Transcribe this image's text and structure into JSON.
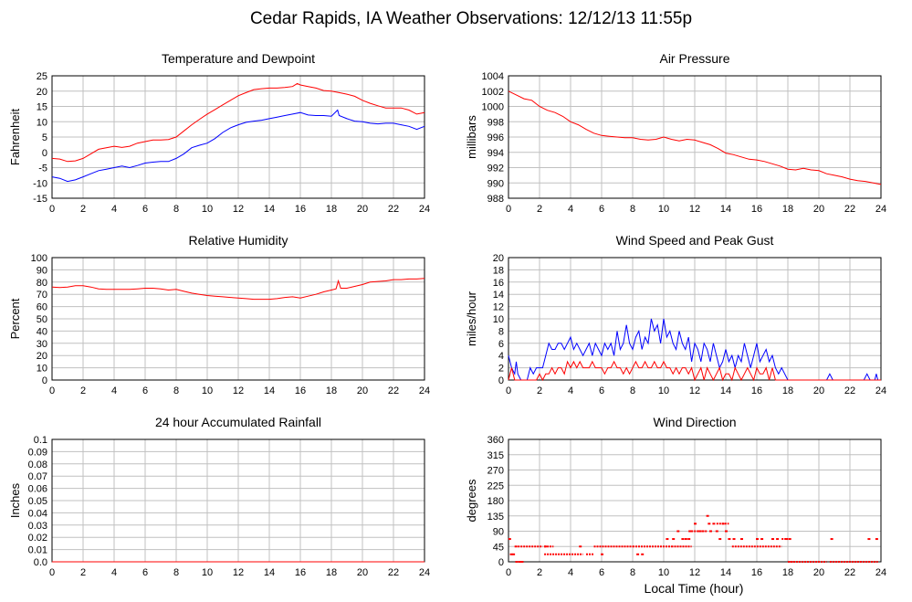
{
  "page": {
    "title": "Cedar Rapids, IA Weather Observations: 12/12/13 11:55p",
    "xlabel": "Local Time (hour)"
  },
  "colors": {
    "primary": "#ff0000",
    "secondary": "#0000ff",
    "grid": "#c0c0c0"
  },
  "chart_data": [
    {
      "id": "temp",
      "type": "line",
      "title": "Temperature and Dewpoint",
      "ylabel": "Fahrenheit",
      "xlim": [
        0,
        24
      ],
      "ylim": [
        -15,
        25
      ],
      "xticks": [
        0,
        2,
        4,
        6,
        8,
        10,
        12,
        14,
        16,
        18,
        20,
        22,
        24
      ],
      "yticks": [
        -15,
        -10,
        -5,
        0,
        5,
        10,
        15,
        20,
        25
      ],
      "grid": true,
      "series": [
        {
          "color": "#ff0000",
          "x": [
            0,
            0.5,
            1,
            1.5,
            2,
            2.5,
            3,
            3.5,
            4,
            4.5,
            5,
            5.5,
            6,
            6.5,
            7,
            7.5,
            8,
            8.5,
            9,
            9.5,
            10,
            10.5,
            11,
            11.5,
            12,
            12.5,
            13,
            13.5,
            14,
            14.5,
            15,
            15.5,
            15.8,
            16,
            16.5,
            17,
            17.5,
            18,
            18.5,
            19,
            19.5,
            20,
            20.5,
            21,
            21.5,
            22,
            22.5,
            23,
            23.5,
            24
          ],
          "y": [
            -2,
            -2.2,
            -3,
            -2.8,
            -2,
            -0.5,
            1,
            1.5,
            2,
            1.6,
            2,
            3,
            3.5,
            4,
            4,
            4.2,
            5,
            7,
            9,
            10.8,
            12.5,
            14,
            15.5,
            17,
            18.5,
            19.5,
            20.5,
            20.8,
            21,
            21,
            21.2,
            21.5,
            22.5,
            22,
            21.5,
            21,
            20.2,
            20,
            19.5,
            19,
            18.3,
            17,
            16,
            15.2,
            14.5,
            14.5,
            14.5,
            13.8,
            12.5,
            13
          ]
        },
        {
          "color": "#0000ff",
          "x": [
            0,
            0.5,
            1,
            1.5,
            2,
            2.5,
            3,
            3.5,
            4,
            4.5,
            5,
            5.5,
            6,
            6.5,
            7,
            7.5,
            8,
            8.5,
            9,
            9.5,
            10,
            10.5,
            11,
            11.5,
            12,
            12.5,
            13,
            13.5,
            14,
            14.5,
            15,
            15.5,
            16,
            16.5,
            17,
            17.5,
            18,
            18.4,
            18.5,
            19,
            19.5,
            20,
            20.5,
            21,
            21.5,
            22,
            22.5,
            23,
            23.5,
            24
          ],
          "y": [
            -8,
            -8.5,
            -9.5,
            -9,
            -8,
            -7,
            -6,
            -5.5,
            -5,
            -4.5,
            -5,
            -4.3,
            -3.5,
            -3.2,
            -3,
            -3,
            -2,
            -0.5,
            1.5,
            2.3,
            3,
            4.5,
            6.5,
            8,
            9,
            9.8,
            10.2,
            10.5,
            11,
            11.5,
            12,
            12.5,
            13,
            12.2,
            12,
            12,
            11.8,
            13.8,
            12,
            11,
            10.2,
            10,
            9.5,
            9.3,
            9.5,
            9.5,
            9,
            8.5,
            7.5,
            8.5
          ]
        }
      ]
    },
    {
      "id": "pressure",
      "type": "line",
      "title": "Air Pressure",
      "ylabel": "millibars",
      "xlim": [
        0,
        24
      ],
      "ylim": [
        988,
        1004
      ],
      "xticks": [
        0,
        2,
        4,
        6,
        8,
        10,
        12,
        14,
        16,
        18,
        20,
        22,
        24
      ],
      "yticks": [
        988,
        990,
        992,
        994,
        996,
        998,
        1000,
        1002,
        1004
      ],
      "grid": true,
      "series": [
        {
          "color": "#ff0000",
          "x": [
            0,
            0.5,
            1,
            1.5,
            2,
            2.5,
            3,
            3.5,
            4,
            4.5,
            5,
            5.5,
            6,
            6.5,
            7,
            7.5,
            8,
            8.5,
            9,
            9.5,
            10,
            10.5,
            11,
            11.5,
            12,
            12.5,
            13,
            13.5,
            14,
            14.5,
            15,
            15.5,
            16,
            16.5,
            17,
            17.5,
            18,
            18.5,
            19,
            19.5,
            20,
            20.5,
            21,
            21.5,
            22,
            22.5,
            23,
            23.5,
            24
          ],
          "y": [
            1002,
            1001.5,
            1001,
            1000.8,
            1000,
            999.5,
            999.2,
            998.7,
            998,
            997.6,
            997,
            996.5,
            996.2,
            996.1,
            996,
            995.9,
            995.9,
            995.7,
            995.6,
            995.7,
            996,
            995.7,
            995.5,
            995.7,
            995.6,
            995.3,
            995,
            994.5,
            993.9,
            993.7,
            993.4,
            993.1,
            993,
            992.8,
            992.5,
            992.2,
            991.8,
            991.7,
            991.9,
            991.7,
            991.6,
            991.2,
            991,
            990.8,
            990.5,
            990.3,
            990.2,
            990,
            989.8
          ]
        }
      ]
    },
    {
      "id": "humidity",
      "type": "line",
      "title": "Relative Humidity",
      "ylabel": "Percent",
      "xlim": [
        0,
        24
      ],
      "ylim": [
        0,
        100
      ],
      "xticks": [
        0,
        2,
        4,
        6,
        8,
        10,
        12,
        14,
        16,
        18,
        20,
        22,
        24
      ],
      "yticks": [
        0,
        10,
        20,
        30,
        40,
        50,
        60,
        70,
        80,
        90,
        100
      ],
      "grid": true,
      "series": [
        {
          "color": "#ff0000",
          "x": [
            0,
            0.5,
            1,
            1.5,
            2,
            2.5,
            3,
            3.5,
            4,
            4.5,
            5,
            5.5,
            6,
            6.5,
            7,
            7.5,
            8,
            8.5,
            9,
            9.5,
            10,
            10.5,
            11,
            11.5,
            12,
            12.5,
            13,
            13.5,
            14,
            14.5,
            15,
            15.5,
            16,
            16.5,
            17,
            17.5,
            18,
            18.3,
            18.45,
            18.6,
            19,
            19.5,
            20,
            20.5,
            21,
            21.5,
            22,
            22.5,
            23,
            23.5,
            24
          ],
          "y": [
            76,
            75.5,
            76,
            77,
            77,
            76,
            74.5,
            74,
            74,
            74,
            74,
            74.5,
            75,
            75,
            74.5,
            73.5,
            74,
            72.5,
            71,
            70,
            69,
            68.5,
            68,
            67.5,
            67,
            66.5,
            66,
            66,
            66,
            66.5,
            67.5,
            68,
            67,
            68.5,
            70,
            72,
            73.5,
            74.5,
            81,
            75,
            75,
            76.5,
            78,
            80,
            80.5,
            81,
            82,
            82,
            82.5,
            82.5,
            83
          ]
        }
      ]
    },
    {
      "id": "wind",
      "type": "line",
      "title": "Wind Speed and Peak Gust",
      "ylabel": "miles/hour",
      "xlim": [
        0,
        24
      ],
      "ylim": [
        0,
        20
      ],
      "xticks": [
        0,
        2,
        4,
        6,
        8,
        10,
        12,
        14,
        16,
        18,
        20,
        22,
        24
      ],
      "yticks": [
        0,
        2,
        4,
        6,
        8,
        10,
        12,
        14,
        16,
        18,
        20
      ],
      "grid": true,
      "series": [
        {
          "color": "#0000ff",
          "x": [
            0,
            0.2,
            0.4,
            0.5,
            0.6,
            0.8,
            1,
            1.2,
            1.4,
            1.6,
            1.8,
            2,
            2.2,
            2.4,
            2.6,
            2.8,
            3,
            3.2,
            3.4,
            3.6,
            3.8,
            4,
            4.2,
            4.4,
            4.6,
            4.8,
            5,
            5.2,
            5.4,
            5.6,
            5.8,
            6,
            6.2,
            6.4,
            6.6,
            6.8,
            7,
            7.2,
            7.4,
            7.6,
            7.8,
            8,
            8.2,
            8.4,
            8.6,
            8.8,
            9,
            9.2,
            9.4,
            9.6,
            9.8,
            10,
            10.2,
            10.4,
            10.6,
            10.8,
            11,
            11.2,
            11.4,
            11.6,
            11.8,
            12,
            12.2,
            12.4,
            12.6,
            12.8,
            13,
            13.2,
            13.4,
            13.6,
            13.8,
            14,
            14.2,
            14.4,
            14.6,
            14.8,
            15,
            15.2,
            15.4,
            15.6,
            15.8,
            16,
            16.2,
            16.4,
            16.6,
            16.8,
            17,
            17.2,
            17.4,
            17.6,
            17.8,
            18,
            18.5,
            19,
            20.5,
            20.7,
            20.9,
            22.9,
            23.1,
            23.3,
            23.6,
            23.7,
            23.8,
            24
          ],
          "y": [
            4,
            2,
            1,
            3,
            1,
            0,
            0,
            0,
            2,
            1,
            2,
            2,
            2,
            4,
            6,
            5,
            5,
            6,
            6,
            5,
            6,
            7,
            5,
            6,
            5,
            4,
            5,
            6,
            4,
            6,
            5,
            4,
            6,
            5,
            6,
            4,
            8,
            5,
            6,
            9,
            6,
            5,
            7,
            8,
            5,
            7,
            6,
            10,
            8,
            9,
            6,
            10,
            7,
            8,
            6,
            5,
            8,
            6,
            5,
            7,
            3,
            6,
            5,
            3,
            6,
            5,
            3,
            6,
            4,
            2,
            3,
            5,
            3,
            4,
            2,
            4,
            3,
            6,
            4,
            2,
            4,
            6,
            3,
            4,
            5,
            3,
            4,
            2,
            1,
            2,
            1,
            0,
            0,
            0,
            0,
            1,
            0,
            0,
            1,
            0,
            0,
            1,
            0,
            0
          ]
        },
        {
          "color": "#ff0000",
          "x": [
            0,
            0.2,
            0.4,
            0.6,
            0.8,
            1,
            1.2,
            1.4,
            1.6,
            1.8,
            2,
            2.2,
            2.4,
            2.6,
            2.8,
            3,
            3.2,
            3.4,
            3.6,
            3.8,
            4,
            4.2,
            4.4,
            4.6,
            4.8,
            5,
            5.2,
            5.4,
            5.6,
            5.8,
            6,
            6.2,
            6.4,
            6.6,
            6.8,
            7,
            7.2,
            7.4,
            7.6,
            7.8,
            8,
            8.2,
            8.4,
            8.6,
            8.8,
            9,
            9.2,
            9.4,
            9.6,
            9.8,
            10,
            10.2,
            10.4,
            10.6,
            10.8,
            11,
            11.2,
            11.4,
            11.6,
            11.8,
            12,
            12.2,
            12.4,
            12.6,
            12.8,
            13,
            13.2,
            13.4,
            13.6,
            13.8,
            14,
            14.2,
            14.4,
            14.6,
            14.8,
            15,
            15.2,
            15.4,
            15.6,
            15.8,
            16,
            16.2,
            16.4,
            16.6,
            16.8,
            17,
            17.2,
            24
          ],
          "y": [
            0,
            2,
            0,
            0,
            0,
            0,
            0,
            0,
            0,
            0,
            1,
            0,
            1,
            1,
            2,
            1,
            2,
            2,
            1,
            3,
            2,
            3,
            2,
            3,
            2,
            2,
            2,
            3,
            2,
            2,
            2,
            1,
            2,
            2,
            3,
            2,
            2,
            1,
            2,
            1,
            2,
            3,
            2,
            2,
            3,
            2,
            2,
            3,
            2,
            2,
            3,
            2,
            2,
            1,
            2,
            1,
            2,
            2,
            1,
            2,
            0,
            1,
            2,
            0,
            2,
            1,
            0,
            1,
            2,
            0,
            1,
            1,
            0,
            2,
            1,
            0,
            1,
            2,
            1,
            0,
            2,
            1,
            1,
            2,
            0,
            2,
            0,
            0
          ]
        }
      ]
    },
    {
      "id": "rain",
      "type": "line",
      "title": "24 hour Accumulated Rainfall",
      "ylabel": "Inches",
      "xlim": [
        0,
        24
      ],
      "ylim": [
        0,
        0.1
      ],
      "xticks": [
        0,
        2,
        4,
        6,
        8,
        10,
        12,
        14,
        16,
        18,
        20,
        22,
        24
      ],
      "yticks": [
        "0.0",
        "0.01",
        "0.02",
        "0.03",
        "0.04",
        "0.05",
        "0.06",
        "0.07",
        "0.08",
        "0.09",
        "0.1"
      ],
      "grid": true,
      "series": [
        {
          "color": "#ff0000",
          "x": [
            0,
            24
          ],
          "y": [
            0,
            0
          ]
        }
      ]
    },
    {
      "id": "direction",
      "type": "scatter",
      "title": "Wind Direction",
      "ylabel": "degrees",
      "xlim": [
        0,
        24
      ],
      "ylim": [
        0,
        360
      ],
      "xticks": [
        0,
        2,
        4,
        6,
        8,
        10,
        12,
        14,
        16,
        18,
        20,
        22,
        24
      ],
      "yticks": [
        0,
        45,
        90,
        135,
        180,
        225,
        270,
        315,
        360
      ],
      "grid": true,
      "segments": [
        {
          "x0": 0.6,
          "x1": 2.2,
          "y": 45
        },
        {
          "x0": 2.3,
          "x1": 2.9,
          "y": 45
        },
        {
          "x0": 2.3,
          "x1": 4.8,
          "y": 22
        },
        {
          "x0": 5.0,
          "x1": 5.5,
          "y": 22
        },
        {
          "x0": 5.5,
          "x1": 8.0,
          "y": 45
        },
        {
          "x0": 8.0,
          "x1": 10.5,
          "y": 45
        },
        {
          "x0": 10.5,
          "x1": 11.8,
          "y": 45
        },
        {
          "x0": 14.4,
          "x1": 17.6,
          "y": 45
        },
        {
          "x0": 18.0,
          "x1": 20.5,
          "y": 0
        },
        {
          "x0": 20.7,
          "x1": 23.8,
          "y": 0
        },
        {
          "x0": 11.6,
          "x1": 12.8,
          "y": 90
        },
        {
          "x0": 13.4,
          "x1": 14.2,
          "y": 112
        },
        {
          "x0": 17.6,
          "x1": 18.0,
          "y": 67
        }
      ],
      "x": [
        0.05,
        0.15,
        0.3,
        0.45,
        0.5,
        0.7,
        0.85,
        2.35,
        4.6,
        6.0,
        8.3,
        8.6,
        10.2,
        10.6,
        10.9,
        11.2,
        11.4,
        11.6,
        11.7,
        12.0,
        12.3,
        12.5,
        12.8,
        12.9,
        13.0,
        13.2,
        13.4,
        13.6,
        13.8,
        14.0,
        14.2,
        14.5,
        15.0,
        16.0,
        16.3,
        17.0,
        17.3,
        17.9,
        18.1,
        18.2,
        20.8,
        23.2,
        23.7
      ],
      "y": [
        67,
        22,
        22,
        45,
        0,
        0,
        0,
        45,
        45,
        22,
        22,
        22,
        67,
        67,
        90,
        67,
        67,
        67,
        90,
        112,
        90,
        90,
        135,
        112,
        90,
        112,
        90,
        67,
        112,
        90,
        67,
        67,
        67,
        67,
        67,
        67,
        67,
        67,
        67,
        0,
        67,
        67,
        67
      ]
    }
  ]
}
